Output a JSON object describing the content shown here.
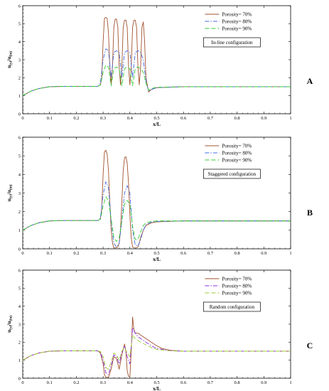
{
  "chart_data": [
    {
      "type": "line",
      "panel_letter": "A",
      "annotation": "In-line configuration",
      "xlabel": "x/L",
      "ylabel": "u",
      "ylabel_sub": "(y)",
      "ylabel_den": "u",
      "ylabel_den_sub": "(in)",
      "xlim": [
        0,
        1
      ],
      "ylim": [
        0,
        6
      ],
      "xticks": [
        "0",
        "0.1",
        "0.2",
        "0.3",
        "0.4",
        "0.5",
        "0.6",
        "0.7",
        "0.8",
        "0.9",
        "1"
      ],
      "yticks": [
        "0",
        "1",
        "2",
        "3",
        "4",
        "5",
        "6"
      ],
      "legend_position": "top-right",
      "series": [
        {
          "name": "Porosity= 70%",
          "color": "#a0522d",
          "dash": "solid",
          "x": [
            0,
            0.03,
            0.06,
            0.1,
            0.15,
            0.2,
            0.25,
            0.28,
            0.29,
            0.295,
            0.3,
            0.305,
            0.31,
            0.315,
            0.32,
            0.325,
            0.33,
            0.335,
            0.34,
            0.345,
            0.35,
            0.355,
            0.36,
            0.365,
            0.37,
            0.375,
            0.38,
            0.385,
            0.39,
            0.395,
            0.4,
            0.405,
            0.41,
            0.415,
            0.42,
            0.425,
            0.43,
            0.435,
            0.44,
            0.445,
            0.45,
            0.455,
            0.46,
            0.47,
            0.48,
            0.5,
            0.6,
            0.8,
            1.0
          ],
          "y": [
            1.0,
            1.25,
            1.4,
            1.5,
            1.52,
            1.52,
            1.52,
            1.52,
            1.6,
            2.0,
            4.0,
            5.3,
            5.35,
            5.3,
            4.5,
            2.6,
            1.65,
            2.6,
            4.8,
            5.25,
            5.25,
            4.8,
            2.6,
            1.6,
            2.6,
            4.8,
            5.2,
            5.2,
            4.8,
            2.6,
            1.6,
            2.6,
            4.8,
            5.2,
            5.2,
            4.8,
            2.6,
            1.6,
            2.6,
            4.8,
            5.1,
            4.0,
            2.0,
            1.2,
            1.35,
            1.45,
            1.5,
            1.5,
            1.5
          ]
        },
        {
          "name": "Porosity= 80%",
          "color": "#4169e1",
          "dash": "dashdot",
          "x": [
            0,
            0.03,
            0.06,
            0.1,
            0.15,
            0.2,
            0.25,
            0.28,
            0.29,
            0.3,
            0.31,
            0.32,
            0.33,
            0.34,
            0.35,
            0.36,
            0.37,
            0.38,
            0.39,
            0.4,
            0.41,
            0.42,
            0.43,
            0.44,
            0.45,
            0.46,
            0.47,
            0.48,
            0.5,
            0.6,
            0.8,
            1.0
          ],
          "y": [
            1.0,
            1.25,
            1.4,
            1.5,
            1.52,
            1.52,
            1.52,
            1.52,
            1.7,
            3.0,
            3.6,
            3.5,
            2.0,
            3.4,
            3.5,
            3.4,
            2.0,
            3.4,
            3.5,
            3.4,
            2.0,
            3.4,
            3.5,
            3.4,
            3.0,
            1.8,
            1.25,
            1.35,
            1.45,
            1.5,
            1.5,
            1.5
          ]
        },
        {
          "name": "Porosity= 90%",
          "color": "#32cd32",
          "dash": "dashed",
          "x": [
            0,
            0.03,
            0.06,
            0.1,
            0.15,
            0.2,
            0.25,
            0.28,
            0.29,
            0.3,
            0.31,
            0.32,
            0.33,
            0.34,
            0.35,
            0.36,
            0.37,
            0.38,
            0.39,
            0.4,
            0.41,
            0.42,
            0.43,
            0.44,
            0.45,
            0.46,
            0.47,
            0.48,
            0.5,
            0.6,
            0.8,
            1.0
          ],
          "y": [
            1.0,
            1.25,
            1.4,
            1.5,
            1.52,
            1.52,
            1.52,
            1.52,
            1.6,
            2.3,
            2.7,
            2.6,
            1.55,
            2.5,
            2.6,
            2.5,
            1.55,
            2.5,
            2.6,
            2.5,
            1.55,
            2.5,
            2.6,
            2.5,
            2.3,
            1.7,
            1.3,
            1.4,
            1.47,
            1.5,
            1.5,
            1.5
          ]
        }
      ]
    },
    {
      "type": "line",
      "panel_letter": "B",
      "annotation": "Staggered configuration",
      "xlabel": "x/L",
      "ylabel": "u",
      "ylabel_sub": "(y)",
      "ylabel_den": "u",
      "ylabel_den_sub": "(in)",
      "xlim": [
        0,
        1
      ],
      "ylim": [
        0,
        6
      ],
      "xticks": [
        "0",
        "0.1",
        "0.2",
        "0.3",
        "0.4",
        "0.5",
        "0.6",
        "0.7",
        "0.8",
        "0.9",
        "1"
      ],
      "yticks": [
        "0",
        "1",
        "2",
        "3",
        "4",
        "5",
        "6"
      ],
      "legend_position": "top-right",
      "series": [
        {
          "name": "Porosity= 70%",
          "color": "#a0522d",
          "dash": "solid",
          "x": [
            0,
            0.03,
            0.06,
            0.1,
            0.15,
            0.2,
            0.25,
            0.28,
            0.29,
            0.295,
            0.3,
            0.305,
            0.31,
            0.315,
            0.32,
            0.325,
            0.33,
            0.335,
            0.34,
            0.345,
            0.35,
            0.355,
            0.36,
            0.365,
            0.37,
            0.375,
            0.38,
            0.385,
            0.39,
            0.395,
            0.4,
            0.405,
            0.41,
            0.415,
            0.42,
            0.425,
            0.43,
            0.435,
            0.44,
            0.45,
            0.46,
            0.48,
            0.5,
            0.6,
            0.8,
            1.0
          ],
          "y": [
            1.0,
            1.25,
            1.4,
            1.5,
            1.52,
            1.52,
            1.52,
            1.52,
            1.6,
            2.2,
            4.0,
            5.2,
            5.3,
            5.1,
            4.2,
            2.5,
            1.0,
            0.3,
            0.05,
            0.05,
            0.05,
            0.1,
            0.3,
            1.0,
            2.5,
            4.2,
            4.9,
            4.95,
            4.6,
            3.5,
            1.8,
            0.6,
            0.1,
            0.05,
            0.05,
            0.05,
            0.1,
            0.3,
            0.6,
            1.0,
            1.25,
            1.4,
            1.45,
            1.5,
            1.5,
            1.5
          ]
        },
        {
          "name": "Porosity= 80%",
          "color": "#4169e1",
          "dash": "dashdot",
          "x": [
            0,
            0.03,
            0.06,
            0.1,
            0.15,
            0.2,
            0.25,
            0.28,
            0.29,
            0.3,
            0.31,
            0.32,
            0.33,
            0.34,
            0.35,
            0.36,
            0.37,
            0.38,
            0.39,
            0.4,
            0.41,
            0.42,
            0.43,
            0.44,
            0.45,
            0.46,
            0.48,
            0.5,
            0.6,
            0.8,
            1.0
          ],
          "y": [
            1.0,
            1.25,
            1.4,
            1.5,
            1.52,
            1.52,
            1.52,
            1.52,
            1.65,
            2.9,
            3.6,
            3.3,
            1.5,
            0.3,
            0.1,
            0.3,
            1.5,
            3.0,
            3.4,
            3.0,
            1.0,
            0.2,
            0.15,
            0.5,
            1.0,
            1.3,
            1.43,
            1.47,
            1.5,
            1.5,
            1.5
          ]
        },
        {
          "name": "Porosity= 90%",
          "color": "#32cd32",
          "dash": "dashed",
          "x": [
            0,
            0.03,
            0.06,
            0.1,
            0.15,
            0.2,
            0.25,
            0.28,
            0.29,
            0.3,
            0.31,
            0.32,
            0.33,
            0.34,
            0.35,
            0.36,
            0.37,
            0.38,
            0.39,
            0.4,
            0.41,
            0.42,
            0.43,
            0.44,
            0.45,
            0.46,
            0.48,
            0.5,
            0.6,
            0.8,
            1.0
          ],
          "y": [
            1.0,
            1.25,
            1.4,
            1.5,
            1.52,
            1.52,
            1.52,
            1.52,
            1.6,
            2.3,
            2.8,
            2.6,
            1.6,
            0.6,
            0.4,
            0.6,
            1.5,
            2.4,
            2.6,
            2.4,
            1.2,
            0.5,
            0.5,
            0.9,
            1.25,
            1.4,
            1.47,
            1.5,
            1.5,
            1.5,
            1.5
          ]
        }
      ]
    },
    {
      "type": "line",
      "panel_letter": "C",
      "annotation": "Random configuration",
      "xlabel": "x/L",
      "ylabel": "u",
      "ylabel_sub": "(y)",
      "ylabel_den": "u",
      "ylabel_den_sub": "(in)",
      "xlim": [
        0,
        1
      ],
      "ylim": [
        0,
        6
      ],
      "xticks": [
        "0",
        "0.1",
        "0.2",
        "0.3",
        "0.4",
        "0.5",
        "0.6",
        "0.7",
        "0.8",
        "0.9",
        "1"
      ],
      "yticks": [
        "0",
        "1",
        "2",
        "3",
        "4",
        "5",
        "6"
      ],
      "legend_position": "top-right",
      "series": [
        {
          "name": "Porosity= 70%",
          "color": "#a0522d",
          "dash": "solid",
          "x": [
            0,
            0.03,
            0.06,
            0.1,
            0.15,
            0.2,
            0.25,
            0.28,
            0.29,
            0.3,
            0.305,
            0.31,
            0.32,
            0.33,
            0.34,
            0.35,
            0.36,
            0.37,
            0.38,
            0.385,
            0.39,
            0.395,
            0.4,
            0.405,
            0.41,
            0.415,
            0.42,
            0.43,
            0.44,
            0.46,
            0.48,
            0.5,
            0.52,
            0.55,
            0.6,
            0.8,
            1.0
          ],
          "y": [
            1.0,
            1.25,
            1.4,
            1.5,
            1.52,
            1.52,
            1.52,
            1.52,
            1.4,
            0.8,
            0.2,
            0.05,
            0.05,
            0.5,
            1.2,
            1.1,
            0.5,
            1.3,
            1.9,
            1.5,
            0.4,
            0.1,
            0.1,
            1.5,
            3.4,
            2.7,
            2.5,
            2.5,
            2.4,
            2.2,
            2.0,
            1.8,
            1.65,
            1.55,
            1.5,
            1.5,
            1.5
          ]
        },
        {
          "name": "Porosity= 80%",
          "color": "#8a2be2",
          "dash": "dashdot",
          "x": [
            0,
            0.03,
            0.06,
            0.1,
            0.15,
            0.2,
            0.25,
            0.28,
            0.29,
            0.3,
            0.31,
            0.32,
            0.33,
            0.34,
            0.35,
            0.36,
            0.37,
            0.38,
            0.39,
            0.4,
            0.41,
            0.42,
            0.43,
            0.44,
            0.46,
            0.48,
            0.5,
            0.55,
            0.6,
            0.8,
            1.0
          ],
          "y": [
            1.0,
            1.25,
            1.4,
            1.5,
            1.52,
            1.52,
            1.52,
            1.52,
            1.45,
            1.0,
            0.3,
            0.2,
            0.7,
            1.3,
            1.2,
            0.8,
            1.4,
            1.8,
            1.2,
            0.8,
            2.8,
            2.5,
            2.3,
            2.2,
            2.0,
            1.8,
            1.65,
            1.53,
            1.5,
            1.5,
            1.5
          ]
        },
        {
          "name": "Porosity= 90%",
          "color": "#9acd32",
          "dash": "dashed",
          "x": [
            0,
            0.03,
            0.06,
            0.1,
            0.15,
            0.2,
            0.25,
            0.28,
            0.29,
            0.3,
            0.31,
            0.32,
            0.33,
            0.34,
            0.35,
            0.36,
            0.37,
            0.38,
            0.39,
            0.4,
            0.41,
            0.42,
            0.43,
            0.44,
            0.46,
            0.48,
            0.5,
            0.55,
            0.6,
            0.8,
            1.0
          ],
          "y": [
            1.0,
            1.25,
            1.4,
            1.5,
            1.52,
            1.52,
            1.52,
            1.52,
            1.48,
            1.2,
            0.6,
            0.5,
            0.9,
            1.4,
            1.3,
            1.0,
            1.5,
            1.7,
            1.4,
            1.2,
            2.4,
            2.2,
            2.1,
            2.0,
            1.85,
            1.7,
            1.6,
            1.52,
            1.5,
            1.5,
            1.5
          ]
        }
      ]
    }
  ]
}
